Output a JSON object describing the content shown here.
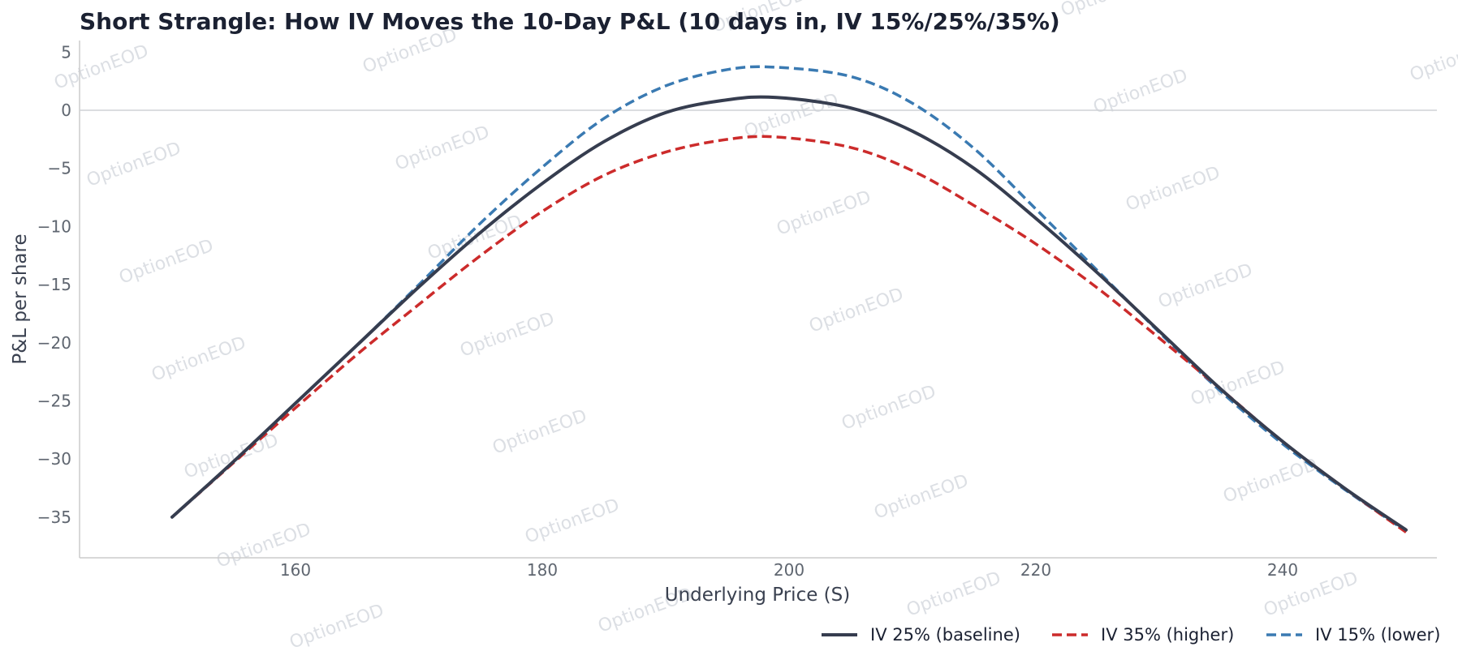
{
  "chart_data": {
    "type": "line",
    "title": "Short Strangle: How IV Moves the 10-Day P&L (10 days in, IV 15%/25%/35%)",
    "xlabel": "Underlying Price (S)",
    "ylabel": "P&L per share",
    "xlim": [
      142.5,
      252.5
    ],
    "ylim": [
      -38.5,
      6
    ],
    "xticks": [
      160,
      180,
      200,
      220,
      240
    ],
    "yticks": [
      5,
      0,
      -5,
      -10,
      -15,
      -20,
      -25,
      -30,
      -35
    ],
    "grid": false,
    "zero_line": true,
    "legend_position": "bottom-right",
    "watermark": "OptionEOD",
    "series": [
      {
        "name": "IV 25% (baseline)",
        "color": "#363d4f",
        "style": "solid",
        "x": [
          150,
          155,
          160,
          165,
          170,
          175,
          180,
          185,
          190,
          195,
          199,
          205,
          210,
          215,
          220,
          225,
          230,
          235,
          240,
          245,
          250
        ],
        "y": [
          -35.0,
          -30.2,
          -25.2,
          -20.2,
          -15.2,
          -10.5,
          -6.3,
          -2.7,
          -0.2,
          0.9,
          1.1,
          0.2,
          -1.8,
          -5.0,
          -9.3,
          -14.0,
          -19.0,
          -24.0,
          -28.5,
          -32.5,
          -36.1
        ]
      },
      {
        "name": "IV 35% (higher)",
        "color": "#cc2b2b",
        "style": "dashed",
        "x": [
          150,
          155,
          160,
          165,
          170,
          175,
          180,
          185,
          190,
          195,
          199,
          205,
          210,
          215,
          220,
          225,
          230,
          235,
          240,
          245,
          250
        ],
        "y": [
          -35.0,
          -30.3,
          -25.6,
          -21.0,
          -16.7,
          -12.5,
          -8.7,
          -5.6,
          -3.6,
          -2.5,
          -2.3,
          -3.2,
          -5.2,
          -8.2,
          -11.5,
          -15.3,
          -19.6,
          -24.0,
          -28.5,
          -32.5,
          -36.3
        ]
      },
      {
        "name": "IV 15% (lower)",
        "color": "#3a7ab2",
        "style": "dashed",
        "x": [
          150,
          155,
          160,
          165,
          170,
          175,
          180,
          185,
          190,
          195,
          199,
          205,
          210,
          215,
          220,
          225,
          230,
          235,
          240,
          245,
          250
        ],
        "y": [
          -35.0,
          -30.2,
          -25.2,
          -20.2,
          -15.0,
          -9.7,
          -4.9,
          -0.7,
          2.1,
          3.5,
          3.7,
          2.9,
          0.6,
          -3.3,
          -8.5,
          -13.8,
          -19.1,
          -24.2,
          -28.7,
          -32.6,
          -36.2
        ]
      }
    ]
  }
}
